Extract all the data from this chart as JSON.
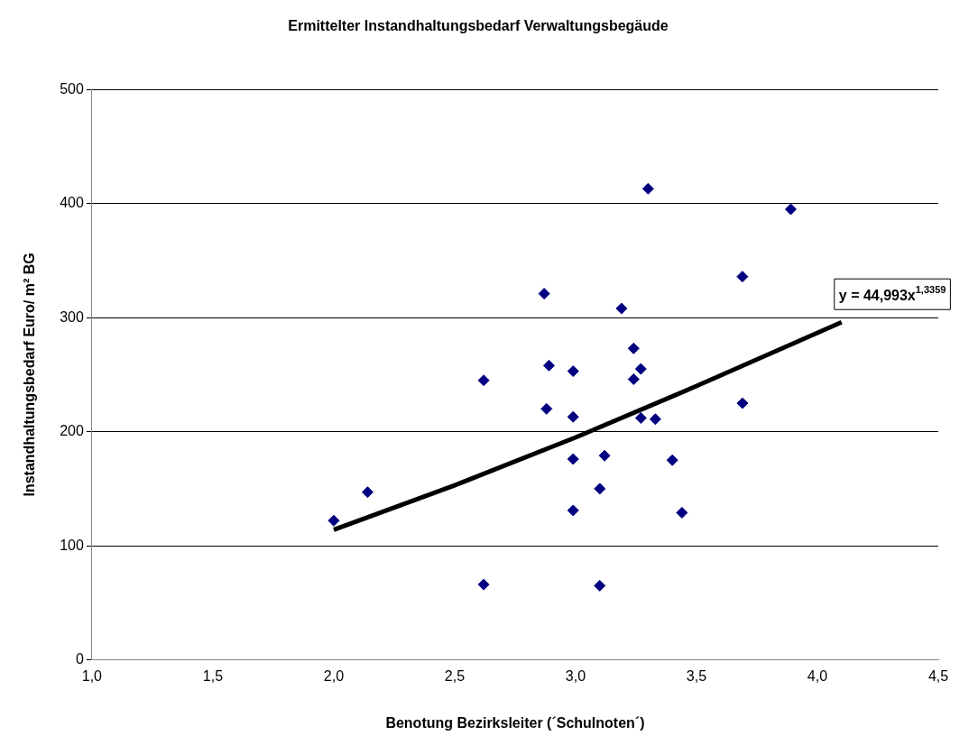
{
  "chart_data": {
    "type": "scatter",
    "title": "Ermittelter Instandhaltungsbedarf Verwaltungsbegäude",
    "xlabel": "Benotung Bezirksleiter (´Schulnoten´)",
    "ylabel": "Instandhaltungsbedarf Euro/ m² BG",
    "xlim": [
      1,
      4.5
    ],
    "xticks": [
      {
        "value": 1,
        "label": "1,0"
      },
      {
        "value": 1.5,
        "label": "1,5"
      },
      {
        "value": 2,
        "label": "2,0"
      },
      {
        "value": 2.5,
        "label": "2,5"
      },
      {
        "value": 3,
        "label": "3,0"
      },
      {
        "value": 3.5,
        "label": "3,5"
      },
      {
        "value": 4,
        "label": "4,0"
      },
      {
        "value": 4.5,
        "label": "4,5"
      }
    ],
    "ylim": [
      0,
      500
    ],
    "yticks": [
      0,
      100,
      200,
      300,
      400,
      500
    ],
    "grid": "y",
    "legend": false,
    "marker": "diamond",
    "series": [
      {
        "type": "scatter",
        "color": "#000080",
        "x": [
          2.0,
          2.14,
          2.62,
          2.62,
          2.87,
          2.89,
          2.88,
          2.99,
          2.99,
          2.99,
          2.99,
          3.1,
          3.1,
          3.12,
          3.19,
          3.24,
          3.24,
          3.27,
          3.27,
          3.3,
          3.33,
          3.4,
          3.44,
          3.69,
          3.69,
          3.89
        ],
        "values": [
          122,
          147,
          245,
          66,
          321,
          258,
          220,
          253,
          213,
          176,
          131,
          150,
          65,
          179,
          308,
          273,
          246,
          255,
          212,
          413,
          211,
          175,
          129,
          336,
          225,
          395
        ]
      },
      {
        "type": "line",
        "color": "#000000",
        "line_style": "solid",
        "marker": "none",
        "x": [
          2.0,
          2.5,
          3.0,
          3.5,
          4.1
        ],
        "values": [
          114,
          153,
          195,
          240,
          296
        ]
      }
    ],
    "annotations": [
      {
        "text": "y = 44,993x$^{1,3359}$",
        "x": 4.1,
        "y": 296
      }
    ]
  }
}
